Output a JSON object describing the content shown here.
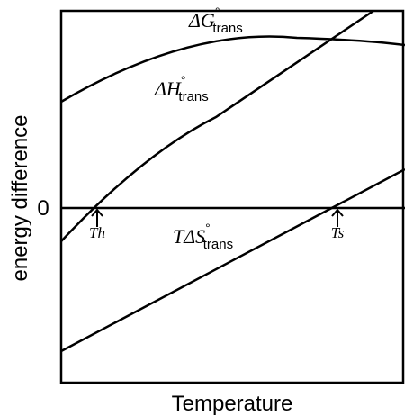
{
  "axes": {
    "x_label": "Temperature",
    "y_label": "energy difference",
    "zero_label": "0"
  },
  "curves": [
    {
      "symbol": "ΔG",
      "superscript": "°",
      "subscript": "trans"
    },
    {
      "symbol": "ΔH",
      "superscript": "°",
      "subscript": "trans"
    },
    {
      "symbol": "TΔS",
      "superscript": "°",
      "subscript": "trans"
    }
  ],
  "markers": [
    {
      "label": "Th"
    },
    {
      "label": "Ts"
    }
  ]
}
